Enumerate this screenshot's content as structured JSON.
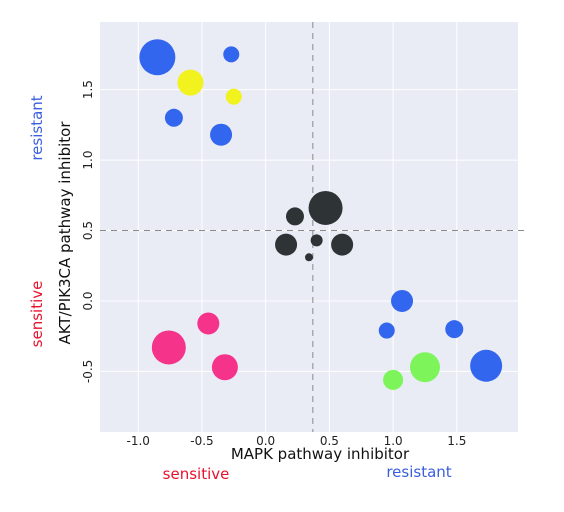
{
  "chart_data": {
    "type": "scatter",
    "xlabel": "MAPK pathway inhibitor",
    "ylabel": "AKT/PIK3CA pathway inhibitor",
    "xlim": [
      -1.3,
      1.98
    ],
    "ylim": [
      -0.93,
      1.98
    ],
    "x_ticks": [
      "-1.0",
      "-0.5",
      "0.0",
      "0.5",
      "1.0",
      "1.5"
    ],
    "x_tick_values": [
      -1.0,
      -0.5,
      0.0,
      0.5,
      1.0,
      1.5
    ],
    "y_ticks": [
      "-0.5",
      "0.0",
      "0.5",
      "1.0",
      "1.5"
    ],
    "y_tick_values": [
      -0.5,
      0.0,
      0.5,
      1.0,
      1.5
    ],
    "grid": true,
    "reference_lines": {
      "x": 0.37,
      "y": 0.5
    },
    "annotations": {
      "x_low": {
        "text": "sensitive",
        "color": "#e8112d"
      },
      "x_high": {
        "text": "resistant",
        "color": "#3a5fe0"
      },
      "y_low": {
        "text": "sensitive",
        "color": "#e8112d"
      },
      "y_high": {
        "text": "resistant",
        "color": "#3a5fe0"
      }
    },
    "colors": {
      "background": "#e9ebf5",
      "blue": "#3366ee",
      "yellow": "#f2f21e",
      "dark": "#2e3436",
      "pink": "#f5338a",
      "green": "#7df55a"
    },
    "points": [
      {
        "x": -0.85,
        "y": 1.73,
        "size": 18,
        "color": "blue"
      },
      {
        "x": -0.27,
        "y": 1.75,
        "size": 8,
        "color": "blue"
      },
      {
        "x": -0.59,
        "y": 1.55,
        "size": 13,
        "color": "yellow"
      },
      {
        "x": -0.25,
        "y": 1.45,
        "size": 8,
        "color": "yellow"
      },
      {
        "x": -0.72,
        "y": 1.3,
        "size": 9,
        "color": "blue"
      },
      {
        "x": -0.35,
        "y": 1.18,
        "size": 11,
        "color": "blue"
      },
      {
        "x": 0.47,
        "y": 0.66,
        "size": 17,
        "color": "dark"
      },
      {
        "x": 0.23,
        "y": 0.6,
        "size": 9,
        "color": "dark"
      },
      {
        "x": 0.16,
        "y": 0.4,
        "size": 11,
        "color": "dark"
      },
      {
        "x": 0.4,
        "y": 0.43,
        "size": 6,
        "color": "dark"
      },
      {
        "x": 0.6,
        "y": 0.4,
        "size": 11,
        "color": "dark"
      },
      {
        "x": 0.34,
        "y": 0.31,
        "size": 4,
        "color": "dark"
      },
      {
        "x": 1.07,
        "y": 0.0,
        "size": 11,
        "color": "blue"
      },
      {
        "x": 0.95,
        "y": -0.21,
        "size": 8,
        "color": "blue"
      },
      {
        "x": 1.48,
        "y": -0.2,
        "size": 9,
        "color": "blue"
      },
      {
        "x": 1.73,
        "y": -0.46,
        "size": 16,
        "color": "blue"
      },
      {
        "x": 1.25,
        "y": -0.47,
        "size": 15,
        "color": "green"
      },
      {
        "x": 1.0,
        "y": -0.56,
        "size": 10,
        "color": "green"
      },
      {
        "x": -0.45,
        "y": -0.16,
        "size": 11,
        "color": "pink"
      },
      {
        "x": -0.76,
        "y": -0.33,
        "size": 17,
        "color": "pink"
      },
      {
        "x": -0.32,
        "y": -0.47,
        "size": 13,
        "color": "pink"
      }
    ]
  }
}
